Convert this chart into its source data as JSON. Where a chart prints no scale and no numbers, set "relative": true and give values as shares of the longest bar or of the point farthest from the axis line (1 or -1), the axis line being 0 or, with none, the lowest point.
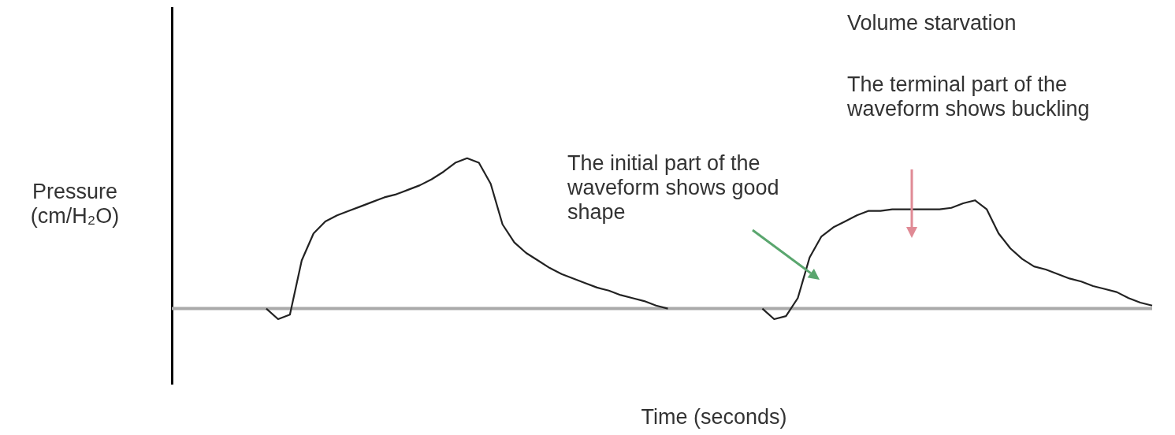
{
  "chart_data": {
    "type": "line",
    "relative": true,
    "title": "Volume starvation",
    "xlabel": "Time (seconds)",
    "ylabel": "Pressure (cm/H₂O)",
    "annotations": [
      "The terminal part of the waveform shows buckling",
      "The initial part of the waveform shows good shape"
    ],
    "categories": [
      null,
      null,
      null,
      null,
      null,
      null,
      null,
      null,
      null,
      null,
      null,
      null,
      null,
      null,
      null,
      null,
      null,
      null,
      null,
      null,
      null,
      null,
      null,
      null,
      null,
      null,
      null,
      null,
      null,
      null,
      null,
      null,
      null,
      null,
      null,
      null,
      null,
      null,
      null,
      null,
      null,
      null,
      null,
      null,
      null,
      null,
      null,
      null,
      null,
      null,
      null,
      null,
      null,
      null,
      null,
      null,
      null,
      null,
      null,
      null,
      null,
      null,
      null,
      null,
      null,
      null,
      null,
      null,
      null,
      null,
      null,
      null,
      null,
      null,
      null,
      null,
      null,
      null,
      null,
      null,
      null,
      null,
      null,
      null
    ],
    "series": [
      {
        "color": "#222222",
        "values": [
          null,
          null,
          null,
          null,
          null,
          null,
          null,
          null,
          0,
          -0.07,
          -0.04,
          0.32,
          0.5,
          0.58,
          0.62,
          0.65,
          0.68,
          0.71,
          0.74,
          0.76,
          0.79,
          0.82,
          0.86,
          0.91,
          0.97,
          1,
          0.97,
          0.83,
          0.56,
          0.44,
          0.37,
          0.32,
          0.27,
          0.23,
          0.2,
          0.17,
          0.14,
          0.12,
          0.09,
          0.07,
          0.05,
          0.02,
          0,
          null,
          null,
          null,
          null,
          null,
          null,
          null,
          null,
          null,
          null,
          null,
          null,
          null,
          null,
          null,
          null,
          null,
          null,
          null,
          null,
          null,
          null,
          null,
          null,
          null,
          null,
          null,
          null,
          null,
          null,
          null,
          null,
          null,
          null,
          null,
          null,
          null,
          null,
          null,
          null,
          null
        ]
      },
      {
        "color": "#222222",
        "values": [
          null,
          null,
          null,
          null,
          null,
          null,
          null,
          null,
          null,
          null,
          null,
          null,
          null,
          null,
          null,
          null,
          null,
          null,
          null,
          null,
          null,
          null,
          null,
          null,
          null,
          null,
          null,
          null,
          null,
          null,
          null,
          null,
          null,
          null,
          null,
          null,
          null,
          null,
          null,
          null,
          null,
          null,
          null,
          null,
          null,
          null,
          null,
          null,
          null,
          null,
          0,
          -0.07,
          -0.05,
          0.07,
          0.34,
          0.48,
          0.54,
          0.58,
          0.62,
          0.65,
          0.65,
          0.66,
          0.66,
          0.66,
          0.66,
          0.66,
          0.67,
          0.7,
          0.72,
          0.66,
          0.5,
          0.4,
          0.33,
          0.28,
          0.26,
          0.23,
          0.2,
          0.18,
          0.15,
          0.13,
          0.11,
          0.07,
          0.04,
          0.02
        ]
      }
    ]
  }
}
